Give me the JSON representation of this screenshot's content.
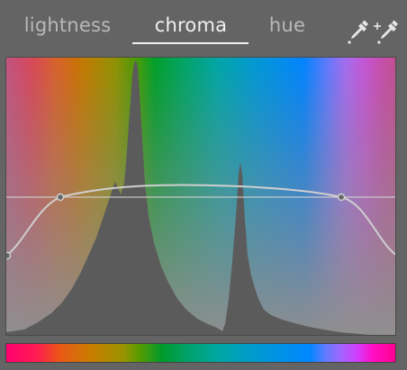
{
  "tabs": [
    {
      "label": "lightness",
      "active": false
    },
    {
      "label": "chroma",
      "active": true
    },
    {
      "label": "hue",
      "active": false
    }
  ],
  "toolbar": {
    "icons": [
      "color-picker-icon",
      "color-picker-area-icon"
    ]
  },
  "graph": {
    "x_axis": "hue",
    "y_axis": "chroma",
    "curve_nodes": [
      {
        "hue": 0.0,
        "value": 0.28
      },
      {
        "hue": 0.138,
        "value": 0.5
      },
      {
        "hue": 0.862,
        "value": 0.5
      },
      {
        "hue": 1.0,
        "value": 0.28
      }
    ],
    "reference_level": 0.5
  },
  "colors": {
    "background": "#646464",
    "active_tab": "#f0f0f0",
    "inactive_tab": "#b9b9b9",
    "curve": "#cfcfcf",
    "histogram": "#5b5b5b"
  }
}
